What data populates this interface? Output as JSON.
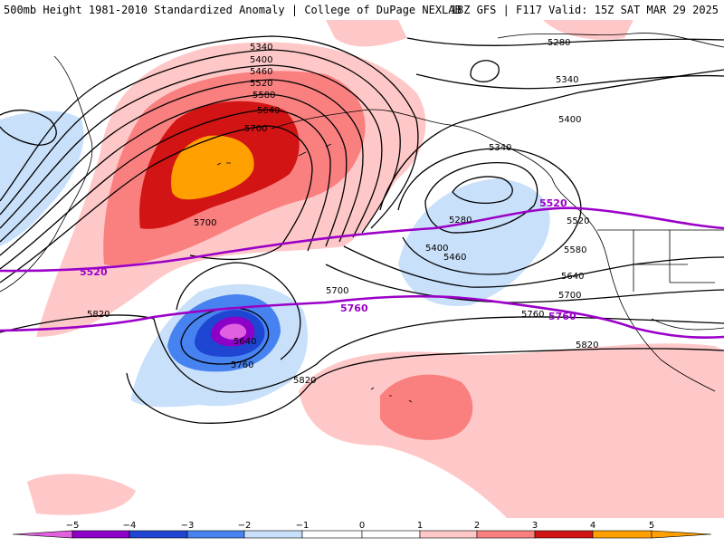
{
  "header": {
    "title_left": "500mb Height 1981-2010 Standardized Anomaly | College of DuPage NEXLAB",
    "title_right": "18Z GFS | F117 Valid: 15Z SAT MAR 29 2025"
  },
  "colors": {
    "anomaly_neg5": "#e060e0",
    "anomaly_neg4": "#8c00c8",
    "anomaly_neg3": "#1e46d2",
    "anomaly_neg2": "#4682f0",
    "anomaly_neg1": "#c8e0fa",
    "anomaly_pos1": "#ffc8c8",
    "anomaly_pos2": "#fa8080",
    "anomaly_pos3": "#d21414",
    "anomaly_pos4": "#ffa000",
    "contour": "#000000",
    "highlight_contour": "#9b00c8"
  },
  "colorbar": {
    "tick_labels": [
      "−5",
      "−4",
      "−3",
      "−2",
      "−1",
      "0",
      "1",
      "2",
      "3",
      "4",
      "5"
    ]
  },
  "contour_labels": {
    "l5340a": "5340",
    "l5400a": "5400",
    "l5460a": "5460",
    "l5520a": "5520",
    "l5580a": "5580",
    "l5640a": "5640",
    "l5700a": "5700",
    "l5700b": "5700",
    "l5280a": "5280",
    "l5340b": "5340",
    "l5400b": "5400",
    "l5340c": "5340",
    "l5280b": "5280",
    "l5400c": "5400",
    "l5460b": "5460",
    "l5520b": "5520",
    "l5580b": "5580",
    "l5640b": "5640",
    "l5700c": "5700",
    "l5700d": "5700",
    "l5760a": "5760",
    "l5820a": "5820",
    "l5640c": "5640",
    "l5760b": "5760",
    "l5820b": "5820",
    "l5820c": "5820"
  },
  "highlight_labels": {
    "h5520a": "5520",
    "h5520b": "5520",
    "h5760a": "5760",
    "h5760b": "5760"
  }
}
